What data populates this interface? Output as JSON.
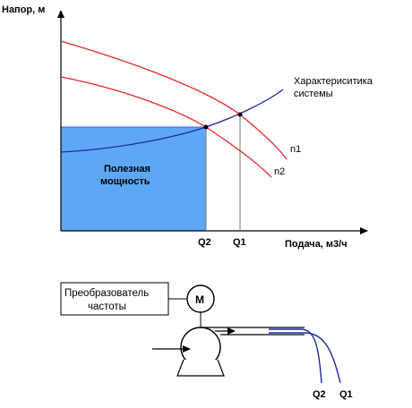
{
  "chart": {
    "y_axis_label": "Напор, м",
    "x_axis_label": "Подача, м3/ч",
    "system_curve_label_line1": "Характериситика",
    "system_curve_label_line2": "системы",
    "curve_n1_label": "n1",
    "curve_n2_label": "n2",
    "area_label_line1": "Полезная",
    "area_label_line2": "мощность",
    "x_tick_q2": "Q2",
    "x_tick_q1": "Q1"
  },
  "scheme": {
    "converter_line1": "Преобразователь",
    "converter_line2": "частоты",
    "motor_label": "M",
    "outflow_q2": "Q2",
    "outflow_q1": "Q1"
  },
  "colors": {
    "area_fill": "#5ea7f5",
    "system_curve": "#1f2aa8",
    "pump_curves": "#e02a2a",
    "outflow_lines": "#1f2aa8",
    "axes": "#000000"
  }
}
